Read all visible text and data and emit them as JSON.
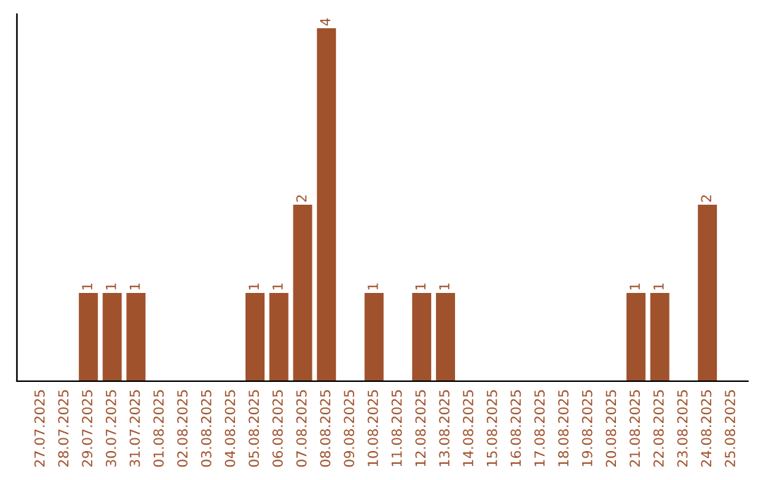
{
  "chart_data": {
    "type": "bar",
    "categories": [
      "27.07.2025",
      "28.07.2025",
      "29.07.2025",
      "30.07.2025",
      "31.07.2025",
      "01.08.2025",
      "02.08.2025",
      "03.08.2025",
      "04.08.2025",
      "05.08.2025",
      "06.08.2025",
      "07.08.2025",
      "08.08.2025",
      "09.08.2025",
      "10.08.2025",
      "11.08.2025",
      "12.08.2025",
      "13.08.2025",
      "14.08.2025",
      "15.08.2025",
      "16.08.2025",
      "17.08.2025",
      "18.08.2025",
      "19.08.2025",
      "20.08.2025",
      "21.08.2025",
      "22.08.2025",
      "23.08.2025",
      "24.08.2025",
      "25.08.2025"
    ],
    "values": [
      0,
      0,
      1,
      1,
      1,
      0,
      0,
      0,
      0,
      1,
      1,
      2,
      4,
      0,
      1,
      0,
      1,
      1,
      0,
      0,
      0,
      0,
      0,
      0,
      0,
      1,
      1,
      0,
      2,
      0
    ],
    "value_labels": [
      null,
      null,
      "1",
      "1",
      "1",
      null,
      null,
      null,
      null,
      "1",
      "1",
      "2",
      "4",
      null,
      "1",
      null,
      "1",
      "1",
      null,
      null,
      null,
      null,
      null,
      null,
      null,
      "1",
      "1",
      null,
      "2",
      null
    ],
    "color": "#a0522d",
    "tick_labels": "x",
    "grid": false
  }
}
